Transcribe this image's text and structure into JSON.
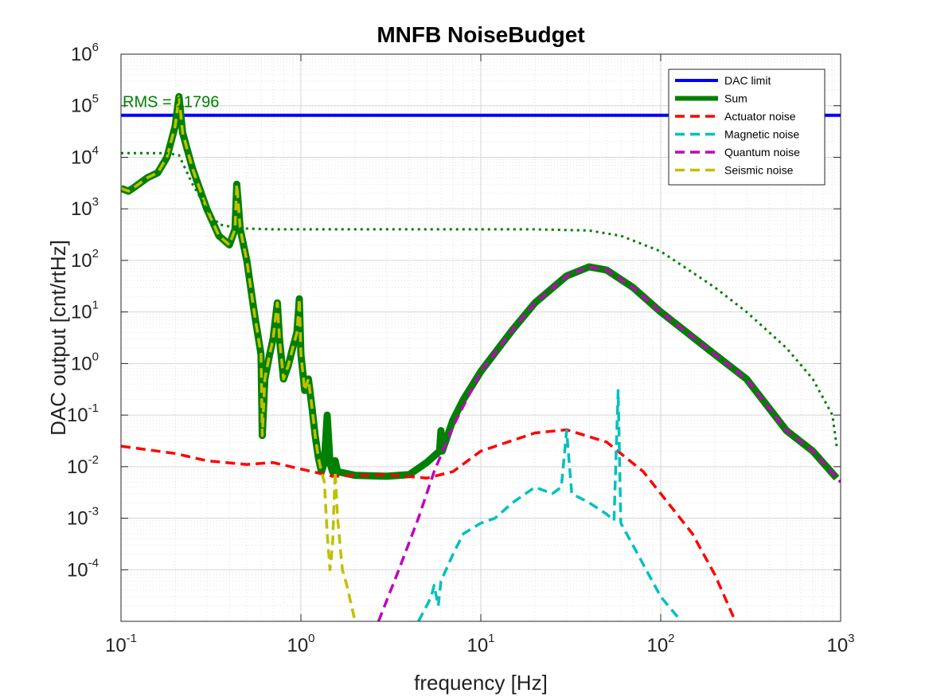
{
  "chart_data": {
    "type": "line",
    "title": "MNFB NoiseBudget",
    "xlabel": "frequency [Hz]",
    "ylabel": "DAC output [cnt/rtHz]",
    "xscale": "log",
    "yscale": "log",
    "xlim": [
      0.1,
      1000
    ],
    "ylim": [
      1e-05,
      1000000
    ],
    "x_ticks": [
      {
        "base": "10",
        "exp": "-1",
        "value": 0.1
      },
      {
        "base": "10",
        "exp": "0",
        "value": 1
      },
      {
        "base": "10",
        "exp": "1",
        "value": 10
      },
      {
        "base": "10",
        "exp": "2",
        "value": 100
      },
      {
        "base": "10",
        "exp": "3",
        "value": 1000
      }
    ],
    "y_ticks": [
      {
        "base": "10",
        "exp": "-4",
        "value": 0.0001
      },
      {
        "base": "10",
        "exp": "-3",
        "value": 0.001
      },
      {
        "base": "10",
        "exp": "-2",
        "value": 0.01
      },
      {
        "base": "10",
        "exp": "-1",
        "value": 0.1
      },
      {
        "base": "10",
        "exp": "0",
        "value": 1
      },
      {
        "base": "10",
        "exp": "1",
        "value": 10
      },
      {
        "base": "10",
        "exp": "2",
        "value": 100
      },
      {
        "base": "10",
        "exp": "3",
        "value": 1000
      },
      {
        "base": "10",
        "exp": "4",
        "value": 10000
      },
      {
        "base": "10",
        "exp": "5",
        "value": 100000
      },
      {
        "base": "10",
        "exp": "6",
        "value": 1000000
      }
    ],
    "grid": true,
    "legend_position": "top-right",
    "annotation": {
      "text": "RMS = 11796",
      "color": "#008000",
      "x": 0.1,
      "y": 120000
    },
    "series": [
      {
        "name": "DAC limit",
        "color": "#0000ff",
        "style": "solid",
        "width": 4,
        "points": [
          [
            0.1,
            65000
          ],
          [
            1000,
            65000
          ]
        ]
      },
      {
        "name": "Sum",
        "color": "#008000",
        "style": "solid",
        "width": 9,
        "points": [
          [
            0.1,
            2500
          ],
          [
            0.11,
            2200
          ],
          [
            0.12,
            2700
          ],
          [
            0.14,
            4000
          ],
          [
            0.16,
            5000
          ],
          [
            0.18,
            10000
          ],
          [
            0.2,
            40000
          ],
          [
            0.21,
            150000
          ],
          [
            0.22,
            30000
          ],
          [
            0.25,
            6000
          ],
          [
            0.3,
            1000
          ],
          [
            0.35,
            300
          ],
          [
            0.4,
            200
          ],
          [
            0.43,
            400
          ],
          [
            0.44,
            3000
          ],
          [
            0.46,
            400
          ],
          [
            0.5,
            100
          ],
          [
            0.55,
            10
          ],
          [
            0.6,
            1.5
          ],
          [
            0.61,
            0.04
          ],
          [
            0.63,
            0.5
          ],
          [
            0.67,
            1.5
          ],
          [
            0.7,
            3
          ],
          [
            0.74,
            15
          ],
          [
            0.76,
            3
          ],
          [
            0.8,
            0.5
          ],
          [
            0.85,
            0.9
          ],
          [
            0.9,
            2
          ],
          [
            0.95,
            4
          ],
          [
            0.98,
            18
          ],
          [
            1.0,
            1.5
          ],
          [
            1.05,
            0.3
          ],
          [
            1.1,
            0.5
          ],
          [
            1.15,
            0.15
          ],
          [
            1.2,
            0.04
          ],
          [
            1.25,
            0.015
          ],
          [
            1.3,
            0.008
          ],
          [
            1.35,
            0.012
          ],
          [
            1.4,
            0.1
          ],
          [
            1.45,
            0.012
          ],
          [
            1.5,
            0.008
          ],
          [
            1.55,
            0.013
          ],
          [
            1.6,
            0.008
          ],
          [
            2,
            0.0068
          ],
          [
            3,
            0.0065
          ],
          [
            4,
            0.007
          ],
          [
            5,
            0.012
          ],
          [
            5.9,
            0.02
          ],
          [
            6.0,
            0.05
          ],
          [
            6.1,
            0.02
          ],
          [
            7,
            0.08
          ],
          [
            8,
            0.2
          ],
          [
            10,
            0.7
          ],
          [
            15,
            4.5
          ],
          [
            20,
            15
          ],
          [
            30,
            50
          ],
          [
            40,
            75
          ],
          [
            50,
            65
          ],
          [
            70,
            30
          ],
          [
            100,
            10
          ],
          [
            200,
            1.5
          ],
          [
            300,
            0.5
          ],
          [
            500,
            0.05
          ],
          [
            700,
            0.02
          ],
          [
            950,
            0.006
          ]
        ]
      },
      {
        "name": "Actuator noise",
        "color": "#ff0000",
        "style": "dashed",
        "width": 3.5,
        "points": [
          [
            0.1,
            0.025
          ],
          [
            0.2,
            0.018
          ],
          [
            0.3,
            0.013
          ],
          [
            0.5,
            0.011
          ],
          [
            0.7,
            0.012
          ],
          [
            1,
            0.009
          ],
          [
            1.5,
            0.0065
          ],
          [
            3,
            0.007
          ],
          [
            5,
            0.006
          ],
          [
            7,
            0.008
          ],
          [
            10,
            0.02
          ],
          [
            20,
            0.045
          ],
          [
            30,
            0.052
          ],
          [
            50,
            0.03
          ],
          [
            80,
            0.008
          ],
          [
            100,
            0.003
          ],
          [
            150,
            0.0005
          ],
          [
            200,
            8e-05
          ],
          [
            260,
            1e-05
          ]
        ]
      },
      {
        "name": "Magnetic noise",
        "color": "#00c0c0",
        "style": "dashed",
        "width": 3.5,
        "points": [
          [
            4.5,
            1e-05
          ],
          [
            5,
            2e-05
          ],
          [
            5.3,
            3e-05
          ],
          [
            5.5,
            5e-05
          ],
          [
            5.8,
            2e-05
          ],
          [
            6,
            6e-05
          ],
          [
            7,
            0.0002
          ],
          [
            8,
            0.0005
          ],
          [
            10,
            0.0008
          ],
          [
            12,
            0.001
          ],
          [
            15,
            0.002
          ],
          [
            20,
            0.004
          ],
          [
            25,
            0.003
          ],
          [
            28,
            0.004
          ],
          [
            30,
            0.05
          ],
          [
            32,
            0.003
          ],
          [
            40,
            0.002
          ],
          [
            50,
            0.0012
          ],
          [
            55,
            0.0009
          ],
          [
            58,
            0.3
          ],
          [
            60,
            0.0008
          ],
          [
            70,
            0.0003
          ],
          [
            100,
            3e-05
          ],
          [
            130,
            1e-05
          ]
        ]
      },
      {
        "name": "Quantum noise",
        "color": "#c000c0",
        "style": "dashed",
        "width": 3.5,
        "points": [
          [
            2.7,
            1e-05
          ],
          [
            3.5,
            0.0001
          ],
          [
            4.5,
            0.001
          ],
          [
            5.5,
            0.008
          ],
          [
            7,
            0.06
          ],
          [
            10,
            0.7
          ],
          [
            15,
            4.5
          ],
          [
            20,
            15
          ],
          [
            30,
            50
          ],
          [
            40,
            75
          ],
          [
            50,
            65
          ],
          [
            70,
            30
          ],
          [
            100,
            10
          ],
          [
            200,
            1.5
          ],
          [
            300,
            0.5
          ],
          [
            500,
            0.05
          ],
          [
            700,
            0.02
          ],
          [
            1000,
            0.005
          ]
        ]
      },
      {
        "name": "Seismic noise",
        "color": "#c0c000",
        "style": "dashed",
        "width": 3.5,
        "points": [
          [
            0.1,
            2500
          ],
          [
            0.11,
            2200
          ],
          [
            0.12,
            2700
          ],
          [
            0.14,
            4000
          ],
          [
            0.16,
            5000
          ],
          [
            0.18,
            10000
          ],
          [
            0.2,
            40000
          ],
          [
            0.21,
            150000
          ],
          [
            0.22,
            30000
          ],
          [
            0.25,
            6000
          ],
          [
            0.3,
            1000
          ],
          [
            0.35,
            300
          ],
          [
            0.4,
            200
          ],
          [
            0.43,
            400
          ],
          [
            0.44,
            3000
          ],
          [
            0.46,
            400
          ],
          [
            0.5,
            100
          ],
          [
            0.55,
            10
          ],
          [
            0.6,
            1.5
          ],
          [
            0.61,
            0.04
          ],
          [
            0.63,
            0.5
          ],
          [
            0.67,
            1.5
          ],
          [
            0.7,
            3
          ],
          [
            0.74,
            15
          ],
          [
            0.76,
            3
          ],
          [
            0.8,
            0.5
          ],
          [
            0.85,
            0.9
          ],
          [
            0.9,
            2
          ],
          [
            0.95,
            4
          ],
          [
            0.98,
            18
          ],
          [
            1.0,
            1.5
          ],
          [
            1.05,
            0.3
          ],
          [
            1.1,
            0.5
          ],
          [
            1.15,
            0.15
          ],
          [
            1.2,
            0.04
          ],
          [
            1.25,
            0.015
          ],
          [
            1.3,
            0.008
          ],
          [
            1.35,
            0.005
          ],
          [
            1.4,
            0.0005
          ],
          [
            1.45,
            0.0001
          ],
          [
            1.5,
            0.0003
          ],
          [
            1.55,
            0.008
          ],
          [
            1.6,
            0.001
          ],
          [
            1.7,
            0.0001
          ],
          [
            1.8,
            5e-05
          ],
          [
            2,
            1e-05
          ]
        ]
      },
      {
        "name": "",
        "color": "#008000",
        "style": "dotted",
        "width": 3,
        "points": [
          [
            0.1,
            12000
          ],
          [
            0.18,
            12000
          ],
          [
            0.21,
            11000
          ],
          [
            0.25,
            3000
          ],
          [
            0.3,
            1000
          ],
          [
            0.35,
            500
          ],
          [
            0.45,
            420
          ],
          [
            0.7,
            400
          ],
          [
            5,
            400
          ],
          [
            20,
            400
          ],
          [
            40,
            380
          ],
          [
            60,
            300
          ],
          [
            100,
            150
          ],
          [
            200,
            30
          ],
          [
            300,
            10
          ],
          [
            500,
            2
          ],
          [
            700,
            0.5
          ],
          [
            900,
            0.1
          ],
          [
            950,
            0.025
          ]
        ]
      }
    ]
  }
}
